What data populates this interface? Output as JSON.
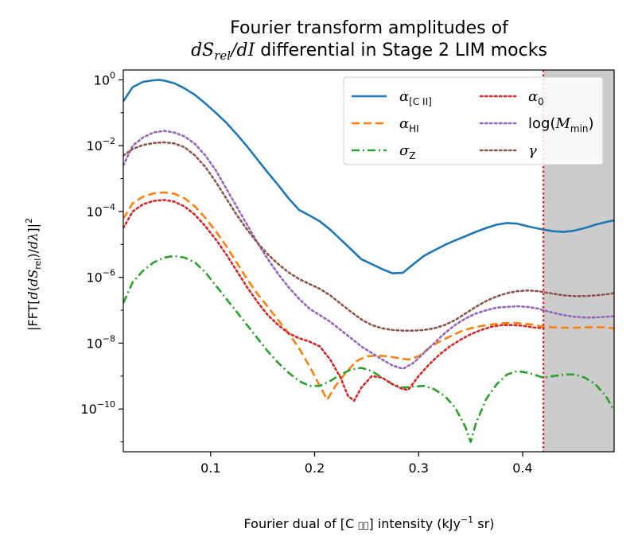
{
  "chart_data": {
    "type": "line",
    "title_line1": "Fourier transform amplitudes of",
    "title_line2": "dS_rel/dI differential in Stage 2 LIM mocks",
    "xlabel": "Fourier dual of [C ɪɪ] intensity (kJy⁻¹ sr)",
    "ylabel": "|FFT[d(dS_rel)/dλ]|²",
    "xlim": [
      0.016,
      0.488
    ],
    "ylim_log10": [
      -11.3,
      0.3
    ],
    "yscale": "log",
    "x_ticks": [
      {
        "value": 0.1,
        "label": "0.1"
      },
      {
        "value": 0.2,
        "label": "0.2"
      },
      {
        "value": 0.3,
        "label": "0.3"
      },
      {
        "value": 0.4,
        "label": "0.4"
      }
    ],
    "y_ticks": [
      {
        "exp": 0,
        "base": "10",
        "sup": "0"
      },
      {
        "exp": -2,
        "base": "10",
        "sup": "−2"
      },
      {
        "exp": -4,
        "base": "10",
        "sup": "−4"
      },
      {
        "exp": -6,
        "base": "10",
        "sup": "−6"
      },
      {
        "exp": -8,
        "base": "10",
        "sup": "−8"
      },
      {
        "exp": -10,
        "base": "10",
        "sup": "−10"
      }
    ],
    "cutoff_x": 0.42,
    "shaded_region": [
      0.42,
      0.488
    ],
    "legend_position": "upper-right",
    "series": [
      {
        "name": "α[C II]",
        "color": "#1f77b4",
        "style": "solid",
        "x": [
          0.016,
          0.025,
          0.035,
          0.045,
          0.05,
          0.055,
          0.065,
          0.075,
          0.085,
          0.095,
          0.105,
          0.115,
          0.125,
          0.135,
          0.145,
          0.155,
          0.165,
          0.175,
          0.185,
          0.195,
          0.205,
          0.215,
          0.225,
          0.235,
          0.245,
          0.255,
          0.265,
          0.275,
          0.285,
          0.295,
          0.305,
          0.315,
          0.325,
          0.335,
          0.345,
          0.355,
          0.365,
          0.375,
          0.385,
          0.395,
          0.405,
          0.415,
          0.42,
          0.43,
          0.44,
          0.45,
          0.46,
          0.47,
          0.48,
          0.488
        ],
        "log10y": [
          -0.65,
          -0.22,
          -0.06,
          -0.015,
          0.0,
          -0.02,
          -0.1,
          -0.26,
          -0.46,
          -0.72,
          -1.0,
          -1.3,
          -1.65,
          -2.02,
          -2.42,
          -2.82,
          -3.2,
          -3.6,
          -3.95,
          -4.12,
          -4.3,
          -4.55,
          -4.85,
          -5.15,
          -5.45,
          -5.6,
          -5.75,
          -5.88,
          -5.86,
          -5.6,
          -5.35,
          -5.18,
          -5.02,
          -4.88,
          -4.75,
          -4.62,
          -4.5,
          -4.4,
          -4.35,
          -4.37,
          -4.45,
          -4.52,
          -4.55,
          -4.6,
          -4.62,
          -4.58,
          -4.5,
          -4.4,
          -4.32,
          -4.27
        ]
      },
      {
        "name": "αHI",
        "color": "#ff7f0e",
        "style": "dashed",
        "x": [
          0.016,
          0.025,
          0.035,
          0.045,
          0.055,
          0.065,
          0.075,
          0.085,
          0.095,
          0.105,
          0.115,
          0.125,
          0.135,
          0.145,
          0.155,
          0.165,
          0.175,
          0.185,
          0.195,
          0.205,
          0.212,
          0.22,
          0.23,
          0.24,
          0.25,
          0.26,
          0.27,
          0.28,
          0.29,
          0.3,
          0.31,
          0.32,
          0.33,
          0.34,
          0.35,
          0.36,
          0.37,
          0.38,
          0.39,
          0.4,
          0.41,
          0.42,
          0.43,
          0.44,
          0.45,
          0.46,
          0.47,
          0.48,
          0.488
        ],
        "log10y": [
          -4.22,
          -3.75,
          -3.55,
          -3.45,
          -3.42,
          -3.46,
          -3.6,
          -3.85,
          -4.2,
          -4.6,
          -5.05,
          -5.55,
          -6.05,
          -6.5,
          -6.9,
          -7.3,
          -7.7,
          -8.15,
          -8.7,
          -9.3,
          -9.72,
          -9.3,
          -8.9,
          -8.55,
          -8.4,
          -8.38,
          -8.4,
          -8.45,
          -8.5,
          -8.4,
          -8.15,
          -7.95,
          -7.8,
          -7.65,
          -7.55,
          -7.48,
          -7.43,
          -7.4,
          -7.38,
          -7.4,
          -7.44,
          -7.5,
          -7.52,
          -7.53,
          -7.53,
          -7.52,
          -7.51,
          -7.52,
          -7.55
        ]
      },
      {
        "name": "σZ",
        "color": "#2ca02c",
        "style": "dashdot",
        "x": [
          0.016,
          0.025,
          0.035,
          0.045,
          0.055,
          0.065,
          0.075,
          0.085,
          0.095,
          0.105,
          0.115,
          0.125,
          0.135,
          0.145,
          0.155,
          0.165,
          0.175,
          0.185,
          0.195,
          0.205,
          0.215,
          0.225,
          0.235,
          0.245,
          0.255,
          0.265,
          0.275,
          0.285,
          0.295,
          0.305,
          0.315,
          0.325,
          0.335,
          0.345,
          0.35,
          0.355,
          0.365,
          0.375,
          0.385,
          0.395,
          0.405,
          0.415,
          0.42,
          0.43,
          0.44,
          0.45,
          0.46,
          0.47,
          0.48,
          0.488
        ],
        "log10y": [
          -6.78,
          -6.15,
          -5.8,
          -5.55,
          -5.4,
          -5.35,
          -5.4,
          -5.55,
          -5.85,
          -6.25,
          -6.65,
          -7.05,
          -7.45,
          -7.85,
          -8.25,
          -8.6,
          -8.9,
          -9.15,
          -9.3,
          -9.3,
          -9.15,
          -8.95,
          -8.8,
          -8.75,
          -8.85,
          -9.05,
          -9.25,
          -9.35,
          -9.32,
          -9.3,
          -9.4,
          -9.6,
          -9.95,
          -10.55,
          -11.0,
          -10.45,
          -9.7,
          -9.25,
          -8.95,
          -8.85,
          -8.9,
          -9.0,
          -9.05,
          -9.0,
          -8.95,
          -8.95,
          -9.05,
          -9.25,
          -9.6,
          -10.05
        ]
      },
      {
        "name": "α0",
        "color": "#d62728",
        "style": "dotted",
        "x": [
          0.016,
          0.025,
          0.035,
          0.045,
          0.055,
          0.065,
          0.075,
          0.085,
          0.095,
          0.105,
          0.115,
          0.125,
          0.135,
          0.145,
          0.155,
          0.165,
          0.175,
          0.185,
          0.195,
          0.205,
          0.215,
          0.225,
          0.232,
          0.238,
          0.245,
          0.255,
          0.265,
          0.275,
          0.285,
          0.29,
          0.3,
          0.31,
          0.32,
          0.33,
          0.34,
          0.35,
          0.36,
          0.37,
          0.38,
          0.39,
          0.4,
          0.41,
          0.42
        ],
        "log10y": [
          -4.5,
          -4.0,
          -3.78,
          -3.68,
          -3.65,
          -3.7,
          -3.85,
          -4.1,
          -4.45,
          -4.85,
          -5.3,
          -5.8,
          -6.3,
          -6.75,
          -7.15,
          -7.45,
          -7.7,
          -7.85,
          -7.95,
          -8.1,
          -8.5,
          -9.05,
          -9.6,
          -9.75,
          -9.35,
          -9.0,
          -9.05,
          -9.25,
          -9.4,
          -9.42,
          -9.0,
          -8.65,
          -8.35,
          -8.1,
          -7.9,
          -7.73,
          -7.6,
          -7.5,
          -7.45,
          -7.45,
          -7.47,
          -7.52,
          -7.55
        ]
      },
      {
        "name": "log(Mmin)",
        "color": "#9467bd",
        "style": "dotted",
        "x": [
          0.016,
          0.025,
          0.035,
          0.045,
          0.055,
          0.065,
          0.075,
          0.085,
          0.095,
          0.105,
          0.115,
          0.125,
          0.135,
          0.145,
          0.155,
          0.165,
          0.175,
          0.185,
          0.195,
          0.205,
          0.215,
          0.225,
          0.235,
          0.245,
          0.255,
          0.265,
          0.275,
          0.285,
          0.295,
          0.305,
          0.315,
          0.325,
          0.335,
          0.345,
          0.355,
          0.365,
          0.375,
          0.385,
          0.395,
          0.405,
          0.415,
          0.42,
          0.43,
          0.44,
          0.45,
          0.46,
          0.47,
          0.48,
          0.488
        ],
        "log10y": [
          -2.6,
          -2.0,
          -1.75,
          -1.6,
          -1.55,
          -1.6,
          -1.72,
          -1.95,
          -2.3,
          -2.75,
          -3.3,
          -3.85,
          -4.4,
          -4.95,
          -5.45,
          -5.9,
          -6.3,
          -6.65,
          -6.95,
          -7.15,
          -7.35,
          -7.6,
          -7.85,
          -8.1,
          -8.3,
          -8.5,
          -8.68,
          -8.78,
          -8.6,
          -8.3,
          -8.0,
          -7.7,
          -7.45,
          -7.25,
          -7.1,
          -7.0,
          -6.92,
          -6.9,
          -6.88,
          -6.9,
          -6.95,
          -7.0,
          -7.08,
          -7.15,
          -7.2,
          -7.22,
          -7.22,
          -7.2,
          -7.18
        ]
      },
      {
        "name": "γ",
        "color": "#8c564b",
        "style": "dotted",
        "x": [
          0.016,
          0.025,
          0.035,
          0.045,
          0.055,
          0.065,
          0.075,
          0.085,
          0.095,
          0.105,
          0.115,
          0.125,
          0.135,
          0.145,
          0.155,
          0.165,
          0.175,
          0.185,
          0.195,
          0.205,
          0.215,
          0.225,
          0.235,
          0.245,
          0.255,
          0.265,
          0.275,
          0.285,
          0.295,
          0.305,
          0.315,
          0.325,
          0.335,
          0.345,
          0.355,
          0.365,
          0.375,
          0.385,
          0.395,
          0.405,
          0.415,
          0.42,
          0.43,
          0.44,
          0.45,
          0.46,
          0.47,
          0.48,
          0.488
        ],
        "log10y": [
          -2.3,
          -2.1,
          -1.98,
          -1.92,
          -1.9,
          -1.93,
          -2.05,
          -2.3,
          -2.65,
          -3.1,
          -3.6,
          -4.1,
          -4.55,
          -4.95,
          -5.3,
          -5.6,
          -5.85,
          -6.05,
          -6.2,
          -6.35,
          -6.55,
          -6.8,
          -7.05,
          -7.28,
          -7.45,
          -7.55,
          -7.6,
          -7.62,
          -7.62,
          -7.6,
          -7.55,
          -7.45,
          -7.3,
          -7.1,
          -6.9,
          -6.72,
          -6.58,
          -6.48,
          -6.42,
          -6.4,
          -6.42,
          -6.45,
          -6.5,
          -6.55,
          -6.57,
          -6.57,
          -6.55,
          -6.52,
          -6.48
        ]
      }
    ]
  },
  "legend": {
    "col1": [
      {
        "series": 0,
        "base": "α",
        "sub": "[C II]"
      },
      {
        "series": 1,
        "base": "α",
        "sub": "HI"
      },
      {
        "series": 2,
        "base": "σ",
        "sub": "Z"
      }
    ],
    "col2": [
      {
        "series": 3,
        "base": "α",
        "sub": "0"
      },
      {
        "series": 4,
        "base": "log(M",
        "sub": "min",
        "tail": ")"
      },
      {
        "series": 5,
        "base": "γ",
        "sub": ""
      }
    ]
  }
}
